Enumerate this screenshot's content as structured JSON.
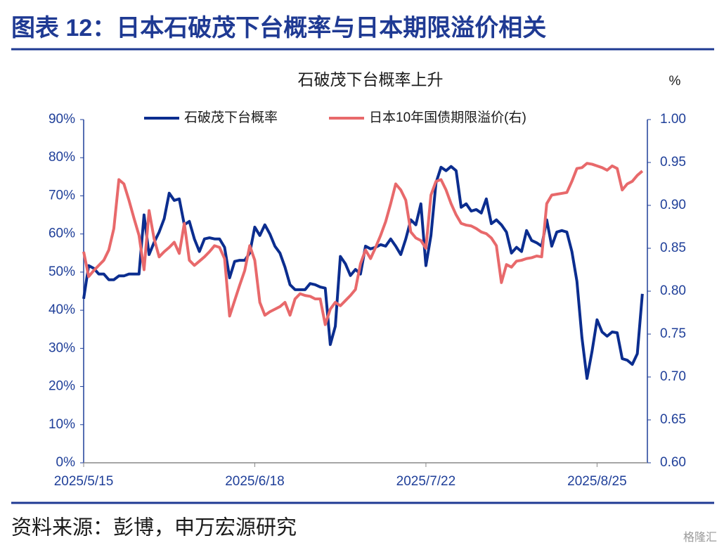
{
  "header": {
    "title": "图表 12：日本石破茂下台概率与日本期限溢价相关"
  },
  "chart_data": {
    "type": "line",
    "title": "石破茂下台概率上升",
    "y2label": "%",
    "x": [
      "2025/5/15",
      "2025/5/16",
      "2025/5/17",
      "2025/5/18",
      "2025/5/19",
      "2025/5/20",
      "2025/5/21",
      "2025/5/22",
      "2025/5/23",
      "2025/5/24",
      "2025/5/25",
      "2025/5/26",
      "2025/5/27",
      "2025/5/28",
      "2025/5/29",
      "2025/5/30",
      "2025/5/31",
      "2025/6/1",
      "2025/6/2",
      "2025/6/3",
      "2025/6/4",
      "2025/6/5",
      "2025/6/6",
      "2025/6/7",
      "2025/6/8",
      "2025/6/9",
      "2025/6/10",
      "2025/6/11",
      "2025/6/12",
      "2025/6/13",
      "2025/6/14",
      "2025/6/15",
      "2025/6/16",
      "2025/6/17",
      "2025/6/18",
      "2025/6/19",
      "2025/6/20",
      "2025/6/21",
      "2025/6/22",
      "2025/6/23",
      "2025/6/24",
      "2025/6/25",
      "2025/6/26",
      "2025/6/27",
      "2025/6/28",
      "2025/6/29",
      "2025/6/30",
      "2025/7/1",
      "2025/7/2",
      "2025/7/3",
      "2025/7/4",
      "2025/7/5",
      "2025/7/6",
      "2025/7/7",
      "2025/7/8",
      "2025/7/9",
      "2025/7/10",
      "2025/7/11",
      "2025/7/12",
      "2025/7/13",
      "2025/7/14",
      "2025/7/15",
      "2025/7/16",
      "2025/7/17",
      "2025/7/18",
      "2025/7/19",
      "2025/7/20",
      "2025/7/21",
      "2025/7/22",
      "2025/7/23",
      "2025/7/24",
      "2025/7/25",
      "2025/7/26",
      "2025/7/27",
      "2025/7/28",
      "2025/7/29",
      "2025/7/30",
      "2025/7/31",
      "2025/8/1",
      "2025/8/2",
      "2025/8/3",
      "2025/8/4",
      "2025/8/5",
      "2025/8/6",
      "2025/8/7",
      "2025/8/8",
      "2025/8/9",
      "2025/8/10",
      "2025/8/11",
      "2025/8/12",
      "2025/8/13",
      "2025/8/14",
      "2025/8/15",
      "2025/8/16",
      "2025/8/17",
      "2025/8/18",
      "2025/8/19",
      "2025/8/20",
      "2025/8/21",
      "2025/8/22",
      "2025/8/23",
      "2025/8/24",
      "2025/8/25",
      "2025/8/26",
      "2025/8/27",
      "2025/8/28",
      "2025/8/29",
      "2025/8/30",
      "2025/8/31",
      "2025/9/1",
      "2025/9/2",
      "2025/9/3"
    ],
    "xlim": [
      "2025/5/15",
      "2025/9/4"
    ],
    "xticks": [
      "2025/5/15",
      "2025/6/18",
      "2025/7/22",
      "2025/8/25"
    ],
    "ylim": [
      0,
      90
    ],
    "yticks": [
      {
        "value": 0,
        "label": "0%"
      },
      {
        "value": 10,
        "label": "10%"
      },
      {
        "value": 20,
        "label": "20%"
      },
      {
        "value": 30,
        "label": "30%"
      },
      {
        "value": 40,
        "label": "40%"
      },
      {
        "value": 50,
        "label": "50%"
      },
      {
        "value": 60,
        "label": "60%"
      },
      {
        "value": 70,
        "label": "70%"
      },
      {
        "value": 80,
        "label": "80%"
      },
      {
        "value": 90,
        "label": "90%"
      }
    ],
    "y2lim": [
      0.6,
      1.0
    ],
    "y2ticks": [
      {
        "value": 0.6,
        "label": "0.60"
      },
      {
        "value": 0.65,
        "label": "0.65"
      },
      {
        "value": 0.7,
        "label": "0.70"
      },
      {
        "value": 0.75,
        "label": "0.75"
      },
      {
        "value": 0.8,
        "label": "0.80"
      },
      {
        "value": 0.85,
        "label": "0.85"
      },
      {
        "value": 0.9,
        "label": "0.90"
      },
      {
        "value": 0.95,
        "label": "0.95"
      },
      {
        "value": 1.0,
        "label": "1.00"
      }
    ],
    "legend": "top",
    "series": [
      {
        "name": "石破茂下台概率",
        "color": "#0b2d8f",
        "values": [
          43,
          51.7,
          51,
          49.5,
          49.5,
          48,
          48,
          49,
          49,
          49.5,
          49.5,
          49.5,
          65,
          54.6,
          57.8,
          60.5,
          64,
          70.7,
          68.8,
          69.2,
          62.4,
          63.3,
          58.7,
          55.4,
          58.7,
          59,
          58.7,
          58.7,
          56.5,
          48.5,
          52.8,
          53.1,
          53.1,
          55,
          61.8,
          59.6,
          62.4,
          60,
          56.8,
          55,
          51.3,
          46.7,
          45.4,
          45.4,
          45.4,
          47,
          46.7,
          46.1,
          45.8,
          31,
          35.8,
          54.1,
          52.2,
          49.1,
          50.7,
          49.5,
          56.8,
          56.1,
          56.5,
          57.2,
          56.8,
          58.7,
          56.8,
          54.6,
          58.7,
          63.7,
          62.4,
          67.9,
          51.7,
          59.6,
          73.4,
          77.5,
          76.6,
          77.7,
          76.6,
          67,
          67.9,
          66,
          66.4,
          65.5,
          69.2,
          62.7,
          63.7,
          62.4,
          60.5,
          55,
          56.5,
          55.4,
          60.9,
          58.3,
          57.7,
          56.8,
          63.7,
          56.8,
          60.5,
          60.9,
          60.5,
          55.4,
          47.6,
          32.8,
          22.1,
          29.2,
          37.5,
          34.3,
          33.2,
          34.3,
          34.1,
          27.3,
          26.9,
          25.8,
          28.6,
          44.3
        ]
      },
      {
        "name": "日本10年国债期限溢价(右)",
        "color": "#e8696b",
        "axis": "y2",
        "values": [
          0.846,
          0.817,
          0.824,
          0.83,
          0.836,
          0.848,
          0.873,
          0.93,
          0.925,
          0.906,
          0.885,
          0.865,
          0.825,
          0.894,
          0.861,
          0.84,
          0.846,
          0.851,
          0.857,
          0.844,
          0.879,
          0.836,
          0.83,
          0.835,
          0.84,
          0.846,
          0.853,
          0.851,
          0.838,
          0.771,
          0.789,
          0.807,
          0.824,
          0.853,
          0.836,
          0.787,
          0.772,
          0.776,
          0.779,
          0.782,
          0.787,
          0.772,
          0.791,
          0.797,
          0.795,
          0.794,
          0.791,
          0.791,
          0.761,
          0.779,
          0.787,
          0.783,
          0.789,
          0.795,
          0.802,
          0.832,
          0.848,
          0.838,
          0.851,
          0.865,
          0.881,
          0.902,
          0.925,
          0.918,
          0.906,
          0.869,
          0.862,
          0.859,
          0.85,
          0.912,
          0.928,
          0.93,
          0.918,
          0.902,
          0.889,
          0.879,
          0.877,
          0.876,
          0.873,
          0.869,
          0.867,
          0.862,
          0.853,
          0.81,
          0.831,
          0.828,
          0.835,
          0.836,
          0.838,
          0.839,
          0.841,
          0.84,
          0.902,
          0.912,
          0.913,
          0.914,
          0.915,
          0.928,
          0.943,
          0.944,
          0.949,
          0.948,
          0.946,
          0.944,
          0.941,
          0.946,
          0.943,
          0.918,
          0.925,
          0.928,
          0.935,
          0.94
        ]
      }
    ]
  },
  "footer": {
    "source": "资料来源：彭博，申万宏源研究",
    "watermark": "格隆汇"
  }
}
